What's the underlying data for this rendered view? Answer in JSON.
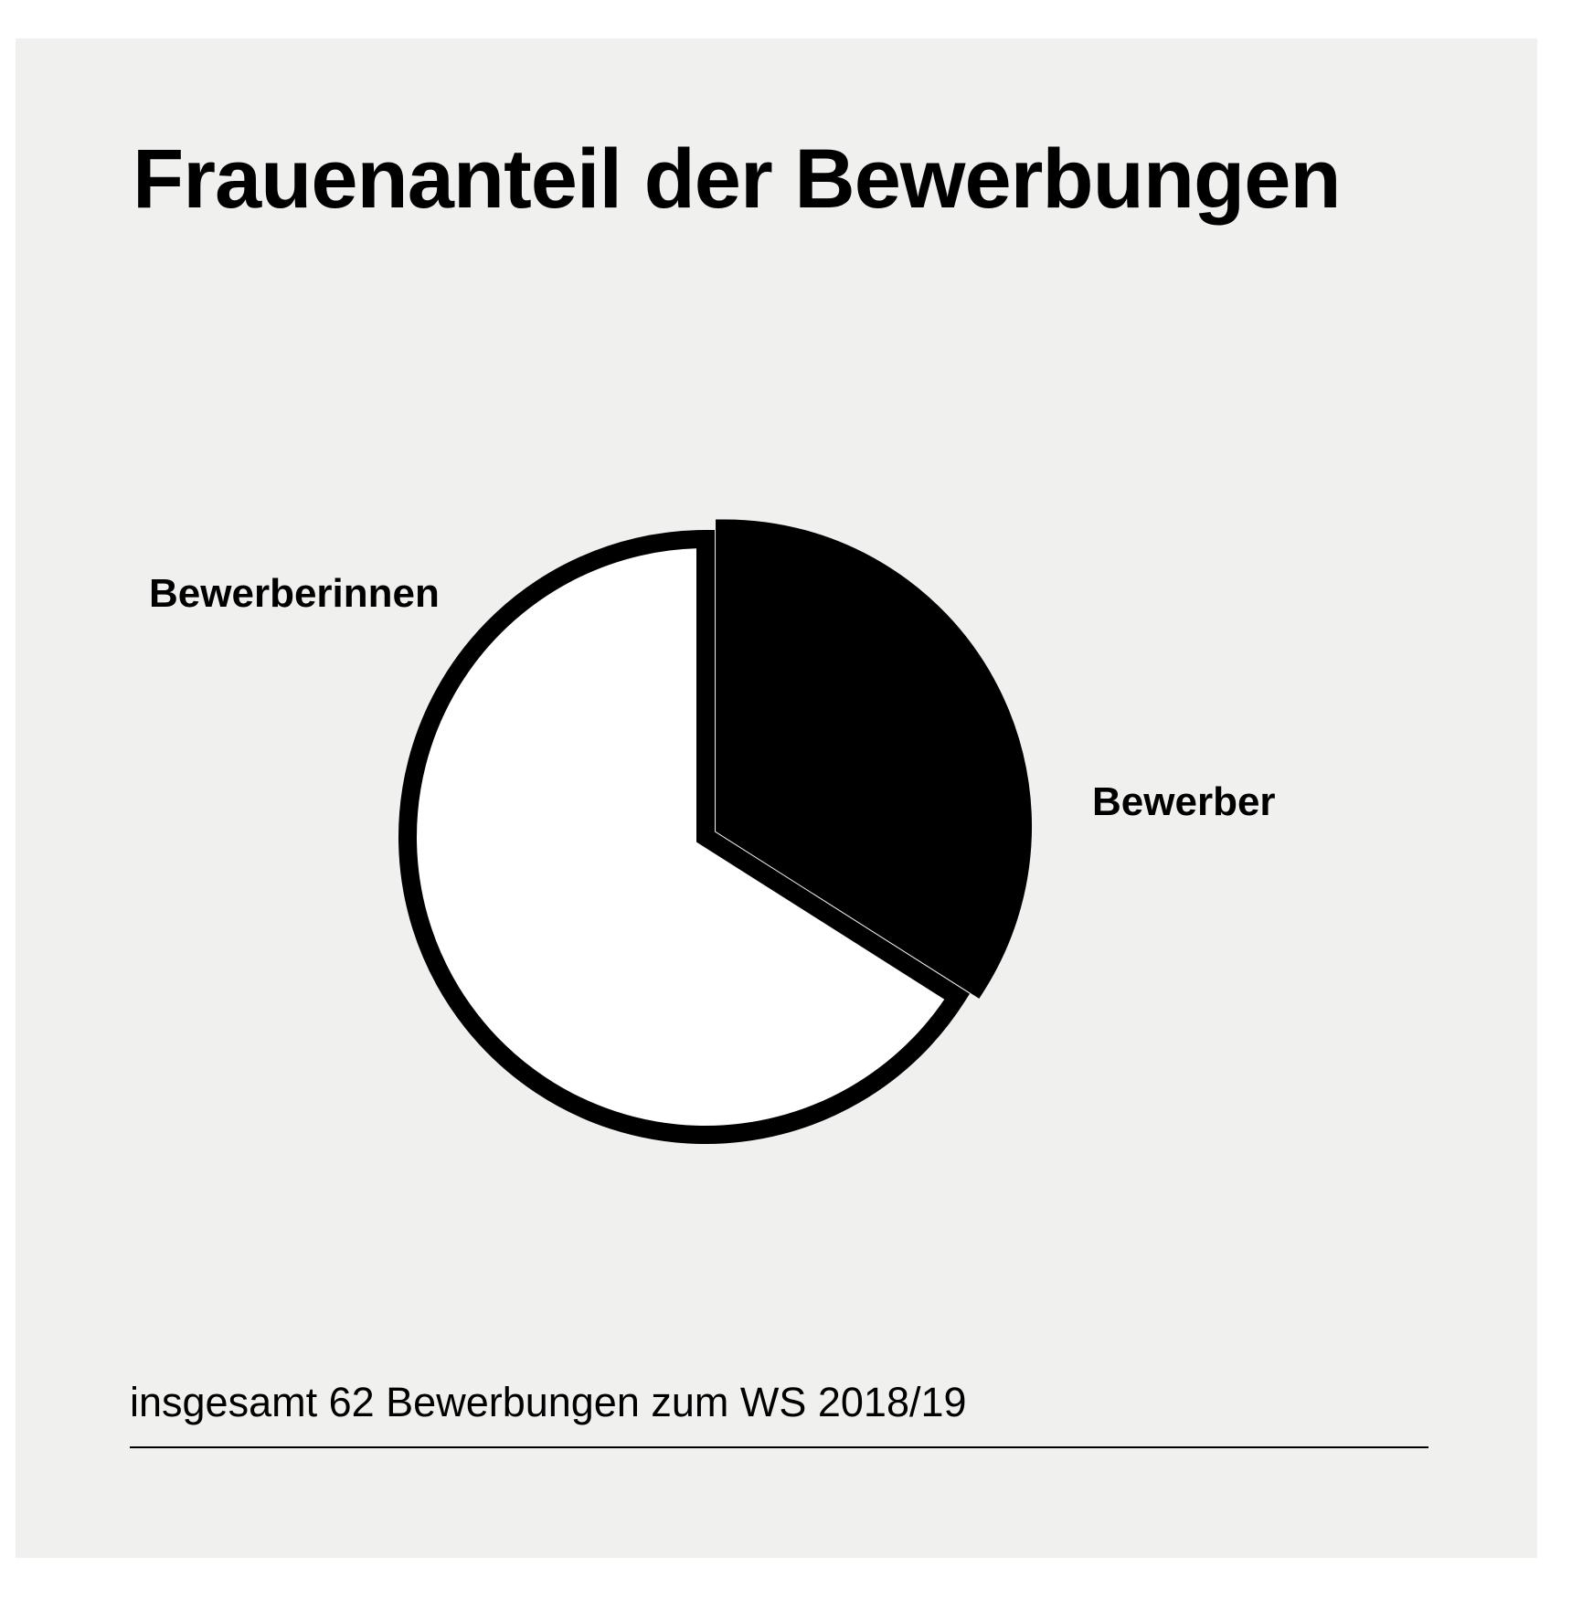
{
  "chart_data": {
    "type": "pie",
    "title": "Frauenanteil der Bewerbungen",
    "footnote": "insgesamt 62 Bewerbungen zum WS 2018/19",
    "slices": [
      {
        "label": "Bewerber",
        "value": 34,
        "color": "#000000",
        "exploded": true
      },
      {
        "label": "Bewerberinnen",
        "value": 66,
        "color": "#ffffff",
        "exploded": false
      }
    ]
  },
  "colors": {
    "background": "#f0f1ef",
    "stroke": "#000000"
  }
}
